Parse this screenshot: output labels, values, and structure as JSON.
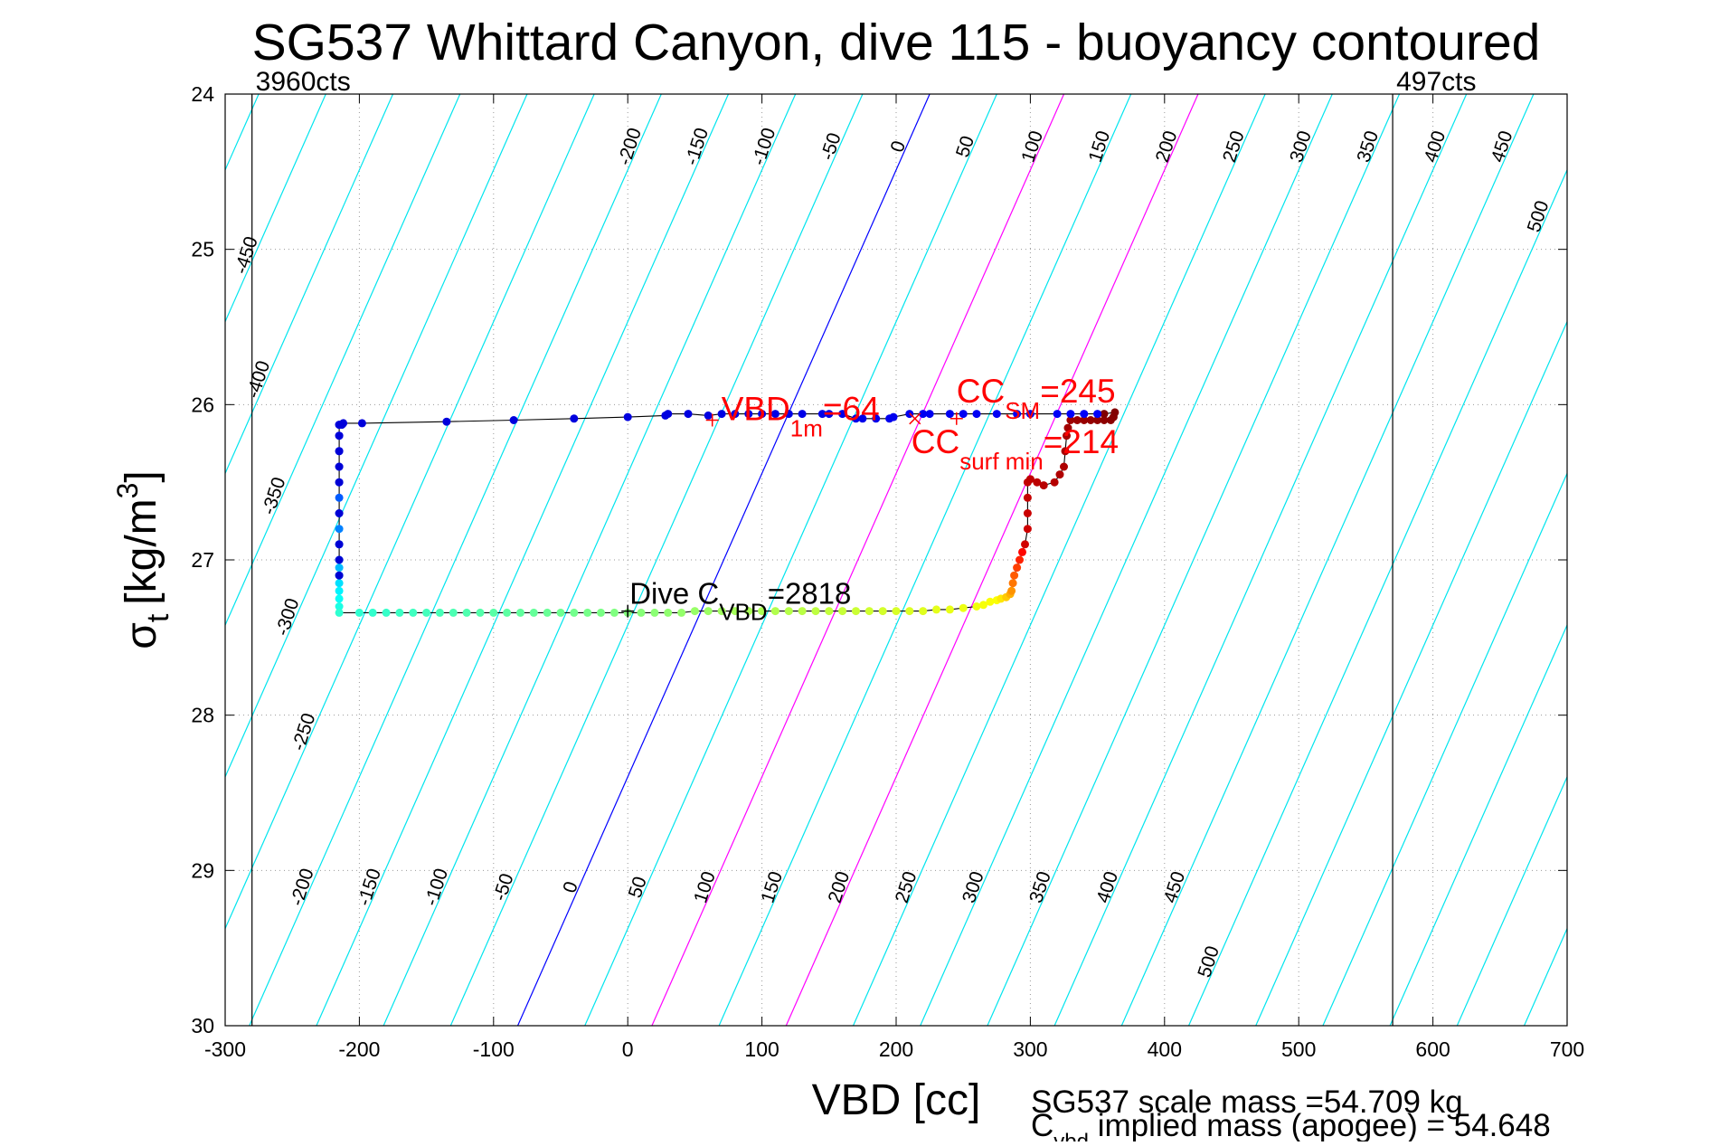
{
  "chart_data": {
    "type": "scatter",
    "title": "SG537 Whittard Canyon, dive 115 - buoyancy contoured",
    "xlabel": "VBD [cc]",
    "ylabel": "σt [kg/m³]",
    "ylabel_main": "σ",
    "ylabel_sub": "t",
    "ylabel_unit": "[kg/m",
    "ylabel_sup": "3",
    "ylabel_close": "]",
    "xlim": [
      -300,
      700
    ],
    "ylim": [
      24,
      30
    ],
    "y_reversed": true,
    "grid": true,
    "xticks": [
      -300,
      -200,
      -100,
      0,
      100,
      200,
      300,
      400,
      500,
      600,
      700
    ],
    "xtick_labels": [
      "-300",
      "-200",
      "-100",
      "0",
      "100",
      "200",
      "300",
      "400",
      "500",
      "600",
      "700"
    ],
    "yticks": [
      24,
      25,
      26,
      27,
      28,
      29,
      30
    ],
    "ytick_labels": [
      "24",
      "25",
      "26",
      "27",
      "28",
      "29",
      "30"
    ],
    "vbd_limits": [
      {
        "x": -280,
        "label": "3960cts"
      },
      {
        "x": 570,
        "label": "497cts"
      }
    ],
    "contours": {
      "values": [
        -450,
        -400,
        -350,
        -300,
        -250,
        -200,
        -150,
        -100,
        -50,
        0,
        50,
        100,
        150,
        200,
        250,
        300,
        350,
        400,
        450,
        500
      ],
      "zero_x_at_top": 225,
      "zero_x_at_bottom": -82,
      "spacing": 50,
      "colors": {
        "default": "#00e5ee",
        "zero": "#0000ff",
        "highlight": "#ff00ff"
      },
      "highlight_values": [
        100,
        200
      ],
      "top_row_labels": [
        -200,
        -150,
        -100,
        -50,
        0,
        50,
        100,
        150,
        200,
        250,
        300,
        350,
        400,
        450
      ],
      "bottom_row_labels": [
        -200,
        -150,
        -100,
        -50,
        0,
        50,
        100,
        150,
        200,
        250,
        300,
        350,
        400,
        450
      ],
      "left_labels": [
        -450,
        -400,
        -350,
        -300,
        -250
      ],
      "extra_labels": [
        500,
        500
      ]
    },
    "series": [
      {
        "name": "",
        "x": [
          -215,
          -215,
          -215,
          -215,
          -215,
          -215,
          -215,
          -215,
          -215,
          -215,
          -215,
          -215,
          -215,
          -215,
          -215,
          -215,
          -215,
          -200,
          -190,
          -180,
          -170,
          -160,
          -150,
          -140,
          -130,
          -120,
          -110,
          -100,
          -90,
          -80,
          -70,
          -60,
          -50,
          -40,
          -30,
          -20,
          -10,
          0,
          10,
          20,
          30,
          40,
          50,
          60,
          70,
          80,
          90,
          100,
          110,
          120,
          130,
          140,
          150,
          160,
          170,
          180,
          190,
          200,
          210,
          220,
          230,
          240,
          250,
          260,
          265,
          270,
          275,
          278,
          282,
          285,
          286,
          287,
          288,
          290,
          292,
          294,
          296,
          298,
          298,
          298,
          298,
          300,
          305,
          310,
          318,
          322,
          325,
          326,
          327,
          328,
          330,
          335,
          340,
          345,
          350,
          355,
          360,
          362,
          363,
          355,
          350,
          340,
          330,
          320,
          300,
          290,
          275,
          260,
          250,
          240,
          225,
          220,
          210,
          198,
          195,
          185,
          175,
          170,
          160,
          150,
          145,
          130,
          120,
          110,
          100,
          90,
          80,
          70,
          60,
          45,
          30,
          28,
          0,
          -40,
          -85,
          -135,
          -198,
          -212,
          -213,
          -215,
          -215,
          -215,
          -215,
          -215,
          -215,
          -215,
          -215,
          -215
        ],
        "y": [
          26.13,
          26.2,
          26.3,
          26.4,
          26.5,
          26.6,
          26.7,
          26.8,
          26.9,
          27.0,
          27.05,
          27.1,
          27.15,
          27.2,
          27.25,
          27.3,
          27.34,
          27.34,
          27.34,
          27.34,
          27.34,
          27.34,
          27.34,
          27.34,
          27.34,
          27.34,
          27.34,
          27.34,
          27.34,
          27.34,
          27.34,
          27.34,
          27.34,
          27.34,
          27.34,
          27.34,
          27.34,
          27.34,
          27.34,
          27.34,
          27.34,
          27.34,
          27.33,
          27.33,
          27.33,
          27.33,
          27.33,
          27.33,
          27.33,
          27.33,
          27.33,
          27.33,
          27.33,
          27.33,
          27.33,
          27.33,
          27.33,
          27.33,
          27.33,
          27.33,
          27.32,
          27.32,
          27.31,
          27.3,
          27.29,
          27.27,
          27.26,
          27.25,
          27.24,
          27.22,
          27.2,
          27.15,
          27.1,
          27.05,
          27.0,
          26.95,
          26.9,
          26.8,
          26.7,
          26.6,
          26.5,
          26.48,
          26.5,
          26.52,
          26.5,
          26.45,
          26.4,
          26.3,
          26.2,
          26.15,
          26.1,
          26.1,
          26.1,
          26.1,
          26.1,
          26.1,
          26.1,
          26.08,
          26.05,
          26.06,
          26.06,
          26.06,
          26.06,
          26.06,
          26.06,
          26.06,
          26.06,
          26.06,
          26.06,
          26.06,
          26.06,
          26.06,
          26.06,
          26.08,
          26.09,
          26.09,
          26.09,
          26.09,
          26.06,
          26.06,
          26.06,
          26.06,
          26.06,
          26.06,
          26.06,
          26.06,
          26.06,
          26.06,
          26.07,
          26.06,
          26.06,
          26.07,
          26.08,
          26.09,
          26.1,
          26.11,
          26.12,
          26.12,
          26.13,
          26.13,
          26.2,
          26.3,
          26.4,
          26.5,
          26.7,
          26.9,
          27.0,
          27.1
        ]
      }
    ],
    "reference_points": [
      {
        "x": 63,
        "y": 26.1,
        "label": "VBD",
        "sub": "1m",
        "suffix": "=64",
        "color": "#ff0000",
        "marker": "+"
      },
      {
        "x": 245,
        "y": 26.09,
        "label": "CC",
        "sub": "SM",
        "suffix": "=245",
        "color": "#ff0000",
        "marker": "+"
      },
      {
        "x": 214,
        "y": 26.09,
        "label": "CC",
        "sub": "surf min",
        "suffix": "=214",
        "color": "#ff0000",
        "marker": "x"
      },
      {
        "x": 0,
        "y": 27.33,
        "label": "Dive C",
        "sub": "VBD",
        "suffix": "=2818",
        "color": "#000000",
        "marker": "+"
      }
    ],
    "annotations": [
      "SG537 scale mass =54.709 kg",
      "C",
      "vbd",
      " implied mass (apogee) = 54.648"
    ]
  }
}
